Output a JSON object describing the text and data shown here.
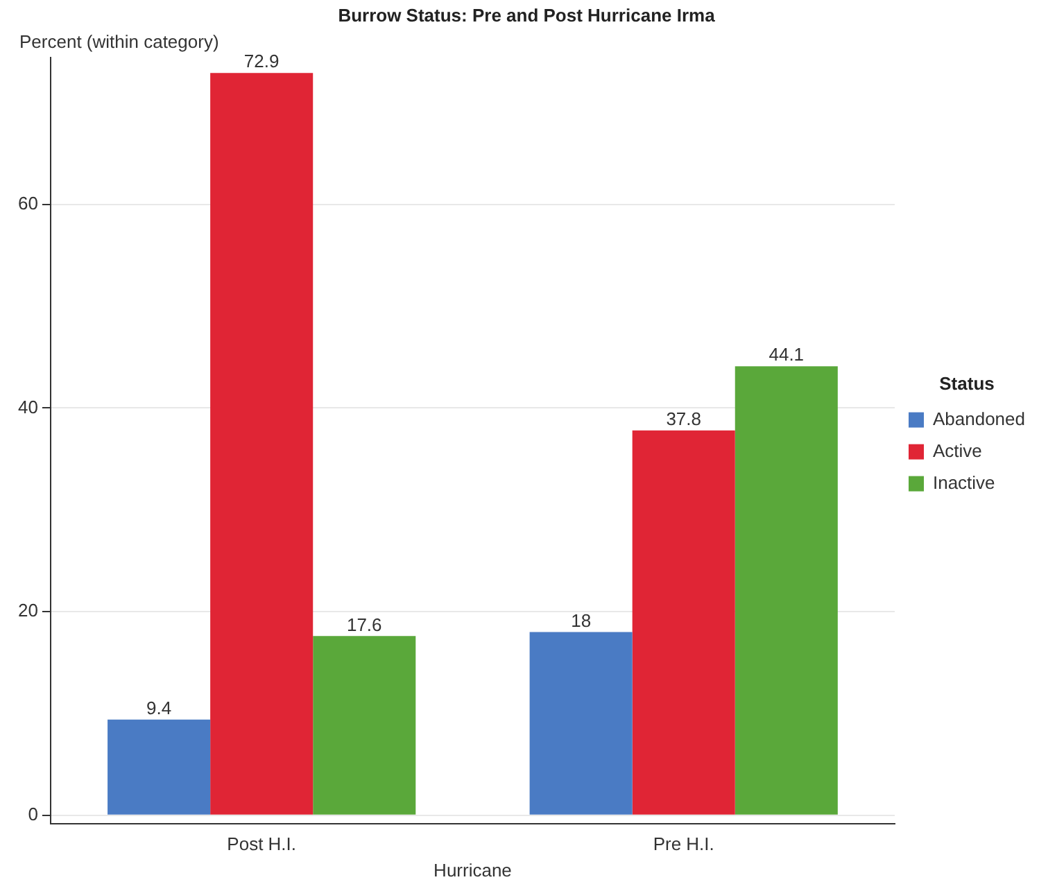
{
  "chart_data": {
    "type": "bar",
    "title": "Burrow Status: Pre and Post Hurricane Irma",
    "xlabel": "Hurricane",
    "ylabel": "Percent (within category)",
    "legend_title": "Status",
    "categories": [
      "Post H.I.",
      "Pre H.I."
    ],
    "series": [
      {
        "name": "Abandoned",
        "color": "#4a7bc4",
        "values": [
          9.4,
          18
        ]
      },
      {
        "name": "Active",
        "color": "#e02535",
        "values": [
          72.9,
          37.8
        ]
      },
      {
        "name": "Inactive",
        "color": "#5aa83a",
        "values": [
          17.6,
          44.1
        ]
      }
    ],
    "ylim": [
      -0.8,
      74.4
    ],
    "yticks": [
      0,
      20,
      40,
      60
    ],
    "grid": "y",
    "legend": "right",
    "data_labels": true
  }
}
